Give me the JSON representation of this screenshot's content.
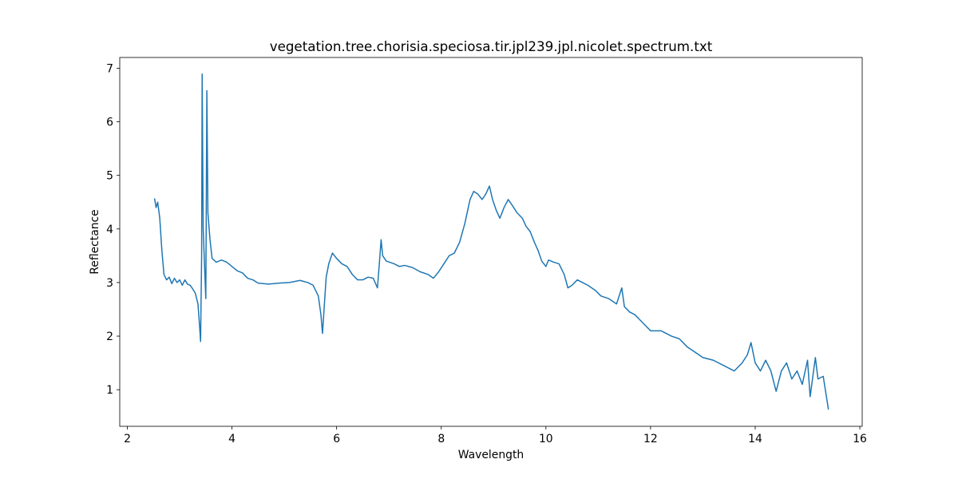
{
  "chart_data": {
    "type": "line",
    "title": "vegetation.tree.chorisia.speciosa.tir.jpl239.jpl.nicolet.spectrum.txt",
    "x_label": "Wavelength",
    "y_label": "Reflectance",
    "color": "#1f77b4",
    "x": [
      2.52,
      2.55,
      2.58,
      2.62,
      2.66,
      2.7,
      2.75,
      2.8,
      2.85,
      2.9,
      2.95,
      3.0,
      3.05,
      3.1,
      3.15,
      3.2,
      3.25,
      3.3,
      3.35,
      3.38,
      3.4,
      3.42,
      3.43,
      3.45,
      3.48,
      3.5,
      3.52,
      3.54,
      3.58,
      3.62,
      3.7,
      3.8,
      3.9,
      4.0,
      4.1,
      4.2,
      4.3,
      4.4,
      4.5,
      4.7,
      4.9,
      5.1,
      5.3,
      5.45,
      5.55,
      5.65,
      5.7,
      5.73,
      5.76,
      5.8,
      5.85,
      5.92,
      6.0,
      6.1,
      6.2,
      6.3,
      6.4,
      6.5,
      6.6,
      6.7,
      6.78,
      6.82,
      6.85,
      6.88,
      6.95,
      7.1,
      7.2,
      7.3,
      7.45,
      7.6,
      7.75,
      7.85,
      7.95,
      8.05,
      8.15,
      8.25,
      8.35,
      8.45,
      8.55,
      8.62,
      8.7,
      8.78,
      8.85,
      8.92,
      8.98,
      9.05,
      9.12,
      9.2,
      9.28,
      9.35,
      9.45,
      9.55,
      9.62,
      9.7,
      9.78,
      9.85,
      9.92,
      10.0,
      10.05,
      10.15,
      10.25,
      10.35,
      10.42,
      10.5,
      10.6,
      10.7,
      10.8,
      10.95,
      11.05,
      11.2,
      11.35,
      11.45,
      11.5,
      11.6,
      11.7,
      11.8,
      11.9,
      12.0,
      12.2,
      12.4,
      12.55,
      12.7,
      12.85,
      13.0,
      13.2,
      13.4,
      13.6,
      13.75,
      13.85,
      13.92,
      14.0,
      14.1,
      14.2,
      14.3,
      14.4,
      14.5,
      14.6,
      14.7,
      14.8,
      14.9,
      15.0,
      15.05,
      15.15,
      15.2,
      15.3,
      15.4
    ],
    "values": [
      4.57,
      4.4,
      4.5,
      4.2,
      3.6,
      3.15,
      3.05,
      3.1,
      2.98,
      3.08,
      3.0,
      3.05,
      2.95,
      3.05,
      2.97,
      2.95,
      2.88,
      2.8,
      2.6,
      2.2,
      1.9,
      3.5,
      6.89,
      4.0,
      3.2,
      2.7,
      6.58,
      4.3,
      3.8,
      3.45,
      3.38,
      3.42,
      3.38,
      3.3,
      3.22,
      3.18,
      3.08,
      3.05,
      2.99,
      2.97,
      2.99,
      3.0,
      3.04,
      3.0,
      2.95,
      2.75,
      2.4,
      2.05,
      2.5,
      3.1,
      3.35,
      3.55,
      3.45,
      3.35,
      3.3,
      3.15,
      3.05,
      3.05,
      3.1,
      3.08,
      2.9,
      3.4,
      3.8,
      3.5,
      3.4,
      3.35,
      3.3,
      3.32,
      3.28,
      3.2,
      3.15,
      3.08,
      3.2,
      3.35,
      3.5,
      3.55,
      3.75,
      4.1,
      4.55,
      4.7,
      4.65,
      4.55,
      4.65,
      4.8,
      4.55,
      4.35,
      4.2,
      4.4,
      4.55,
      4.45,
      4.3,
      4.2,
      4.05,
      3.95,
      3.75,
      3.6,
      3.4,
      3.3,
      3.42,
      3.38,
      3.35,
      3.15,
      2.9,
      2.95,
      3.05,
      3.0,
      2.95,
      2.85,
      2.75,
      2.7,
      2.6,
      2.9,
      2.55,
      2.45,
      2.4,
      2.3,
      2.2,
      2.1,
      2.1,
      2.0,
      1.95,
      1.8,
      1.7,
      1.6,
      1.55,
      1.45,
      1.35,
      1.5,
      1.65,
      1.88,
      1.5,
      1.35,
      1.55,
      1.35,
      0.97,
      1.35,
      1.5,
      1.2,
      1.35,
      1.1,
      1.55,
      0.87,
      1.6,
      1.2,
      1.25,
      0.63
    ],
    "xlim": [
      1.855,
      16.045
    ],
    "ylim": [
      0.317,
      7.2
    ],
    "xticks": [
      2,
      4,
      6,
      8,
      10,
      12,
      14,
      16
    ],
    "yticks": [
      1,
      2,
      3,
      4,
      5,
      6,
      7
    ]
  }
}
